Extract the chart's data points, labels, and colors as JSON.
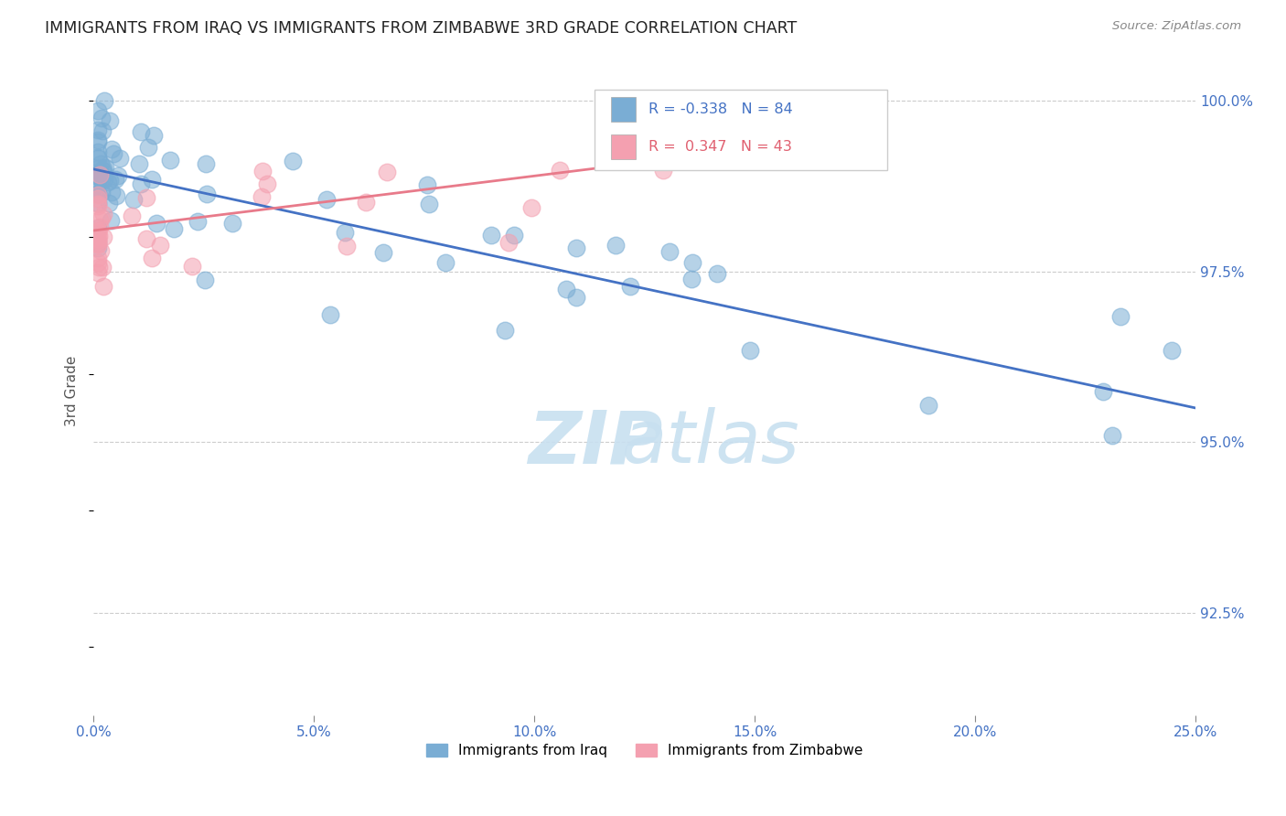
{
  "title": "IMMIGRANTS FROM IRAQ VS IMMIGRANTS FROM ZIMBABWE 3RD GRADE CORRELATION CHART",
  "source": "Source: ZipAtlas.com",
  "xlabel_ticks": [
    "0.0%",
    "5.0%",
    "10.0%",
    "15.0%",
    "20.0%",
    "25.0%"
  ],
  "xlabel_vals": [
    0.0,
    0.05,
    0.1,
    0.15,
    0.2,
    0.25
  ],
  "ylabel_ticks": [
    "92.5%",
    "95.0%",
    "97.5%",
    "100.0%"
  ],
  "ylabel_vals": [
    0.925,
    0.95,
    0.975,
    1.0
  ],
  "ylabel_label": "3rd Grade",
  "xlim": [
    0.0,
    0.25
  ],
  "ylim": [
    0.91,
    1.005
  ],
  "legend_iraq_r": "-0.338",
  "legend_iraq_n": "84",
  "legend_zim_r": "0.347",
  "legend_zim_n": "43",
  "iraq_color": "#7aadd4",
  "zimbabwe_color": "#f4a0b0",
  "iraq_line_color": "#4472c4",
  "zimbabwe_line_color": "#e87a8a",
  "iraq_line_x0": 0.0,
  "iraq_line_y0": 0.99,
  "iraq_line_x1": 0.25,
  "iraq_line_y1": 0.955,
  "zim_line_x0": 0.0,
  "zim_line_y0": 0.981,
  "zim_line_x1": 0.15,
  "zim_line_y1": 0.993,
  "watermark_color": "#c8e0f0"
}
